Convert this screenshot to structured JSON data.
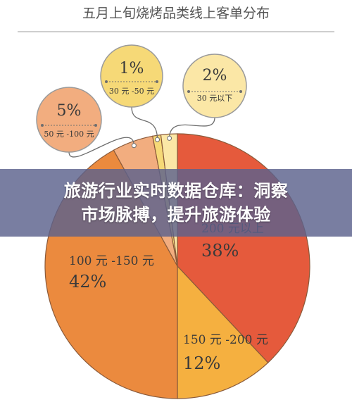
{
  "chart_data": {
    "type": "pie",
    "title": "五月上旬烧烤品类线上客单分布",
    "slices": [
      {
        "label": "200 元以上",
        "value": 38,
        "value_label": "38%",
        "color": "#e55a3c"
      },
      {
        "label": "150 元 -200 元",
        "value": 12,
        "value_label": "12%",
        "color": "#f5b040"
      },
      {
        "label": "100 元 -150 元",
        "value": 42,
        "value_label": "42%",
        "color": "#eb8a3e"
      },
      {
        "label": "50 元 -100 元",
        "value": 5,
        "value_label": "5%",
        "color": "#f2ad7f"
      },
      {
        "label": "30 元 -50 元",
        "value": 1,
        "value_label": "1%",
        "color": "#f6d977"
      },
      {
        "label": "30 元以下",
        "value": 2,
        "value_label": "2%",
        "color": "#fbe7a6"
      }
    ]
  },
  "banner": {
    "line1": "旅游行业实时数据仓库：洞察",
    "line2": "市场脉搏，提升旅游体验"
  }
}
